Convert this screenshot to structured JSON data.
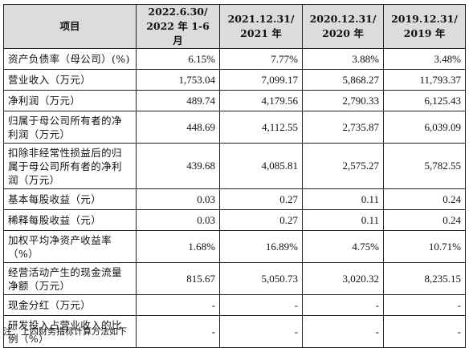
{
  "table": {
    "header": {
      "item": "项目",
      "periods": [
        {
          "line1": "2022.6.30/",
          "line2": "2022 年 1-6 月"
        },
        {
          "line1": "2021.12.31/",
          "line2": "2021 年"
        },
        {
          "line1": "2020.12.31/",
          "line2": "2020 年"
        },
        {
          "line1": "2019.12.31/",
          "line2": "2019 年"
        }
      ]
    },
    "rows": [
      {
        "label": "资产负债率（母公司）(%)",
        "values": [
          "6.15%",
          "7.77%",
          "3.88%",
          "3.48%"
        ]
      },
      {
        "label": "营业收入（万元）",
        "values": [
          "1,753.04",
          "7,099.17",
          "5,868.27",
          "11,793.37"
        ]
      },
      {
        "label": "净利润（万元）",
        "values": [
          "489.74",
          "4,179.56",
          "2,790.33",
          "6,125.43"
        ]
      },
      {
        "label": "归属于母公司所有者的净利润（万元）",
        "values": [
          "448.69",
          "4,112.55",
          "2,735.87",
          "6,039.09"
        ]
      },
      {
        "label": "扣除非经常性损益后的归属于母公司所有者的净利润（万元）",
        "values": [
          "439.68",
          "4,085.81",
          "2,575.27",
          "5,782.55"
        ]
      },
      {
        "label": "基本每股收益（元）",
        "values": [
          "0.03",
          "0.27",
          "0.11",
          "0.24"
        ]
      },
      {
        "label": "稀释每股收益（元）",
        "values": [
          "0.03",
          "0.27",
          "0.11",
          "0.24"
        ]
      },
      {
        "label": "加权平均净资产收益率（%）",
        "values": [
          "1.68%",
          "16.89%",
          "4.75%",
          "10.71%"
        ]
      },
      {
        "label": "经营活动产生的现金流量净额（万元）",
        "values": [
          "815.67",
          "5,050.73",
          "3,020.32",
          "8,235.15"
        ]
      },
      {
        "label": "现金分红（万元）",
        "values": [
          "-",
          "-",
          "-",
          "-"
        ]
      },
      {
        "label": "研发投入占营业收入的比例（%）",
        "values": [
          "-",
          "-",
          "-",
          "-"
        ]
      }
    ]
  },
  "footnote": "注：上四财务指标计算方法如下"
}
